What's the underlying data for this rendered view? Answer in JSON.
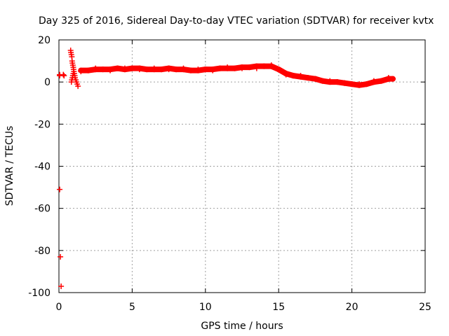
{
  "chart_data": {
    "type": "scatter",
    "title": "Day 325 of 2016, Sidereal Day-to-day VTEC variation (SDTVAR) for receiver kvtx",
    "xlabel": "GPS time / hours",
    "ylabel": "SDTVAR / TECUs",
    "xlim": [
      0,
      25
    ],
    "ylim": [
      -100,
      20
    ],
    "xticks": [
      0,
      5,
      10,
      15,
      20,
      25
    ],
    "yticks": [
      -100,
      -80,
      -60,
      -40,
      -20,
      0,
      20
    ],
    "grid": true,
    "marker": "+",
    "series": [
      {
        "name": "SDTVAR",
        "color": "#ff0000",
        "x": [
          0.05,
          0.1,
          0.15,
          0.05,
          0.05,
          0.3,
          0.35,
          0.8,
          0.82,
          0.85,
          0.88,
          0.9,
          0.92,
          0.95,
          0.98,
          1.0,
          1.02,
          1.05,
          1.08,
          1.1,
          1.15,
          1.2,
          1.25,
          1.3,
          0.85,
          0.88,
          0.92,
          0.95,
          0.98,
          1.5,
          2.0,
          2.5,
          3.0,
          3.5,
          4.0,
          4.5,
          5.0,
          5.5,
          6.0,
          6.5,
          7.0,
          7.5,
          8.0,
          8.5,
          9.0,
          9.5,
          10.0,
          10.5,
          11.0,
          11.5,
          12.0,
          12.5,
          13.0,
          13.5,
          14.0,
          14.5,
          15.0,
          15.5,
          16.0,
          16.5,
          17.0,
          17.5,
          18.0,
          18.5,
          19.0,
          19.5,
          20.0,
          20.5,
          21.0,
          21.5,
          22.0,
          22.5,
          22.8,
          1.5,
          2.5,
          3.5,
          4.5,
          5.5,
          6.5,
          7.5,
          8.5,
          9.5,
          10.5,
          11.5,
          12.5,
          13.5,
          14.5,
          15.5,
          16.5,
          17.5,
          18.5,
          19.5,
          20.5,
          21.5,
          22.5
        ],
        "y": [
          -51,
          -83,
          -97,
          3.5,
          3,
          3.5,
          3,
          15,
          14,
          13,
          12,
          10,
          9,
          8,
          7,
          6,
          5,
          4,
          3,
          2,
          1,
          0,
          -1,
          -2,
          0,
          1,
          2,
          3,
          4,
          5.5,
          5.5,
          6,
          6,
          6,
          6.5,
          6,
          6.5,
          6.5,
          6,
          6,
          6,
          6.5,
          6,
          6,
          5.5,
          5.5,
          6,
          6,
          6.5,
          6.5,
          6.5,
          7,
          7,
          7.5,
          7.5,
          7.5,
          6,
          4,
          3,
          2.5,
          2,
          1.5,
          0.5,
          0,
          0,
          -0.5,
          -1,
          -1.5,
          -1,
          0,
          0.5,
          1.5,
          1.5,
          5,
          6.5,
          5.5,
          6.5,
          6,
          6.5,
          6,
          6.5,
          6,
          5.5,
          7,
          6.5,
          6.5,
          8,
          3.5,
          3,
          1.5,
          0.5,
          -0.5,
          -1,
          0.5,
          2
        ]
      }
    ]
  }
}
